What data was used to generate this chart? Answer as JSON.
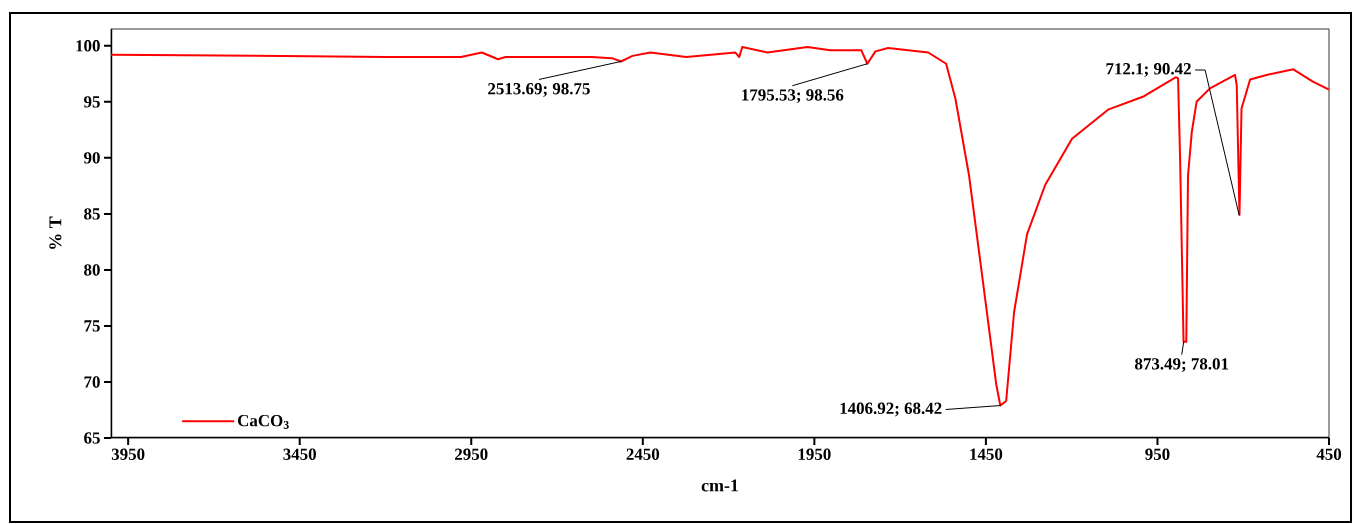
{
  "chart_data": {
    "type": "line",
    "xlabel": "cm-1",
    "ylabel": "% T",
    "xlim": [
      4000,
      450
    ],
    "ylim": [
      65,
      101.5
    ],
    "xticks": [
      3950,
      3450,
      2950,
      2450,
      1950,
      1450,
      950,
      450
    ],
    "yticks": [
      65,
      70,
      75,
      80,
      85,
      90,
      95,
      100
    ],
    "legend": "bottom left",
    "series": [
      {
        "name": "CaCO$_{3}$",
        "color": "#ff0000",
        "x": [
          4000,
          3500,
          3200,
          2980,
          2919,
          2872,
          2850,
          2600,
          2540,
          2513.69,
          2480,
          2428,
          2323,
          2180,
          2169,
          2160,
          2087,
          1970,
          1904,
          1813,
          1795.53,
          1772,
          1735,
          1618,
          1566,
          1539,
          1499,
          1461,
          1420,
          1408,
          1391,
          1368,
          1330,
          1277,
          1199,
          1094,
          989,
          896,
          890,
          884,
          874,
          866,
          861,
          850,
          836,
          797,
          724,
          719,
          711,
          705,
          680,
          632,
          554,
          497,
          450
        ],
        "values": [
          99.2,
          99.1,
          99.0,
          99.0,
          99.4,
          98.8,
          99.0,
          99.0,
          98.9,
          98.6,
          99.1,
          99.4,
          99.0,
          99.4,
          99.0,
          99.9,
          99.4,
          99.9,
          99.6,
          99.6,
          98.4,
          99.5,
          99.8,
          99.4,
          98.4,
          95.3,
          88.4,
          79.5,
          69.8,
          67.9,
          68.3,
          76.2,
          83.2,
          87.6,
          91.7,
          94.3,
          95.5,
          97.2,
          97.1,
          89.9,
          73.6,
          73.6,
          88.4,
          92.3,
          95.0,
          96.2,
          97.4,
          96.5,
          84.9,
          94.4,
          97.0,
          97.4,
          97.9,
          96.8,
          96.1
        ]
      }
    ],
    "annotations": [
      {
        "text": "2513.69; 98.75",
        "x": 2513.69,
        "y": 98.6
      },
      {
        "text": "1795.53; 98.56",
        "x": 1795.53,
        "y": 98.4
      },
      {
        "text": "1406.92; 68.42",
        "x": 1406.92,
        "y": 67.9
      },
      {
        "text": "873.49; 78.01",
        "x": 873.49,
        "y": 73.6
      },
      {
        "text": "712.1; 90.42",
        "x": 712.1,
        "y": 84.9
      }
    ]
  }
}
